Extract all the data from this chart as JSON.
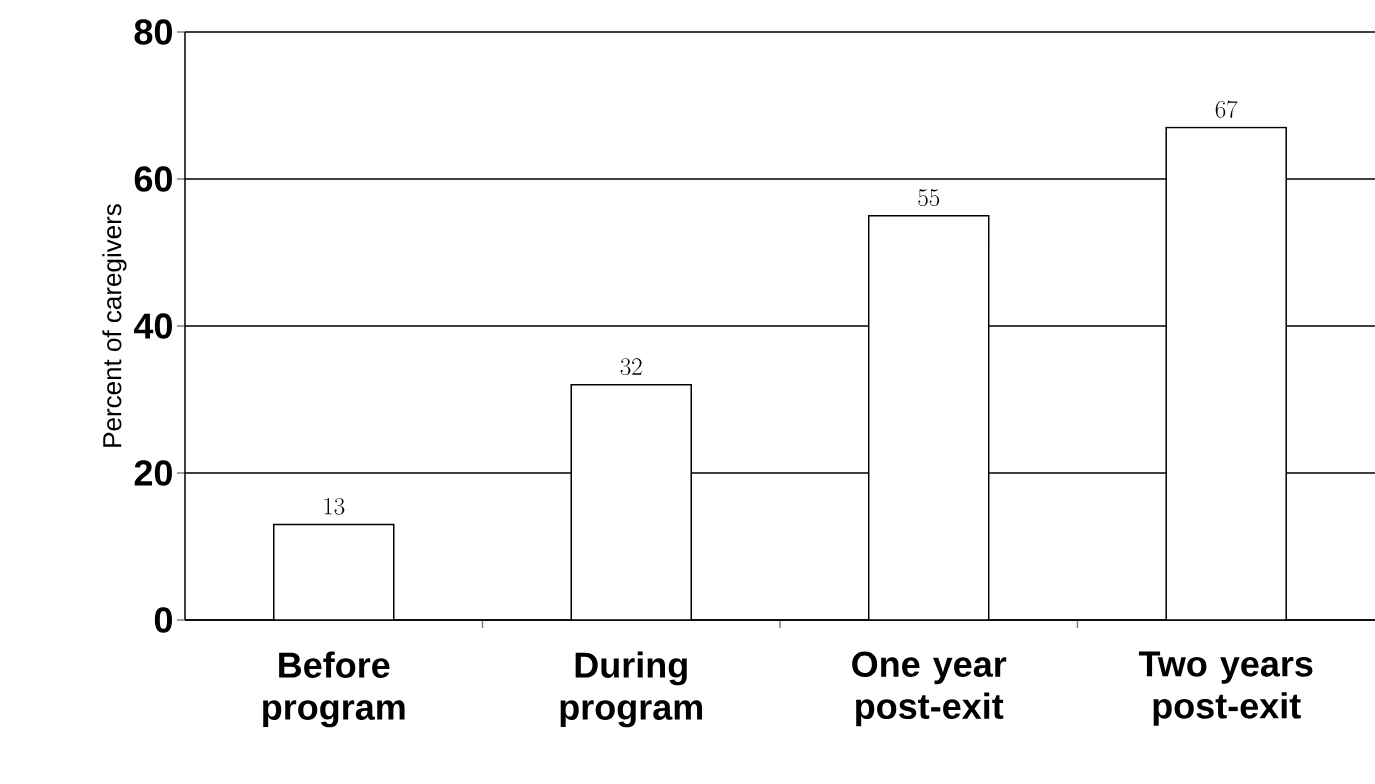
{
  "chart_data": {
    "type": "bar",
    "ylabel": "Percent of caregivers",
    "categories": [
      "Before program",
      "During program",
      "One year post-exit",
      "Two years post-exit"
    ],
    "values": [
      13,
      32,
      55,
      67
    ],
    "color": "#ffffff",
    "ylim": [
      0,
      80
    ],
    "yticks": [
      0,
      20,
      40,
      60,
      80
    ],
    "grid": "y",
    "data_labels": true
  }
}
